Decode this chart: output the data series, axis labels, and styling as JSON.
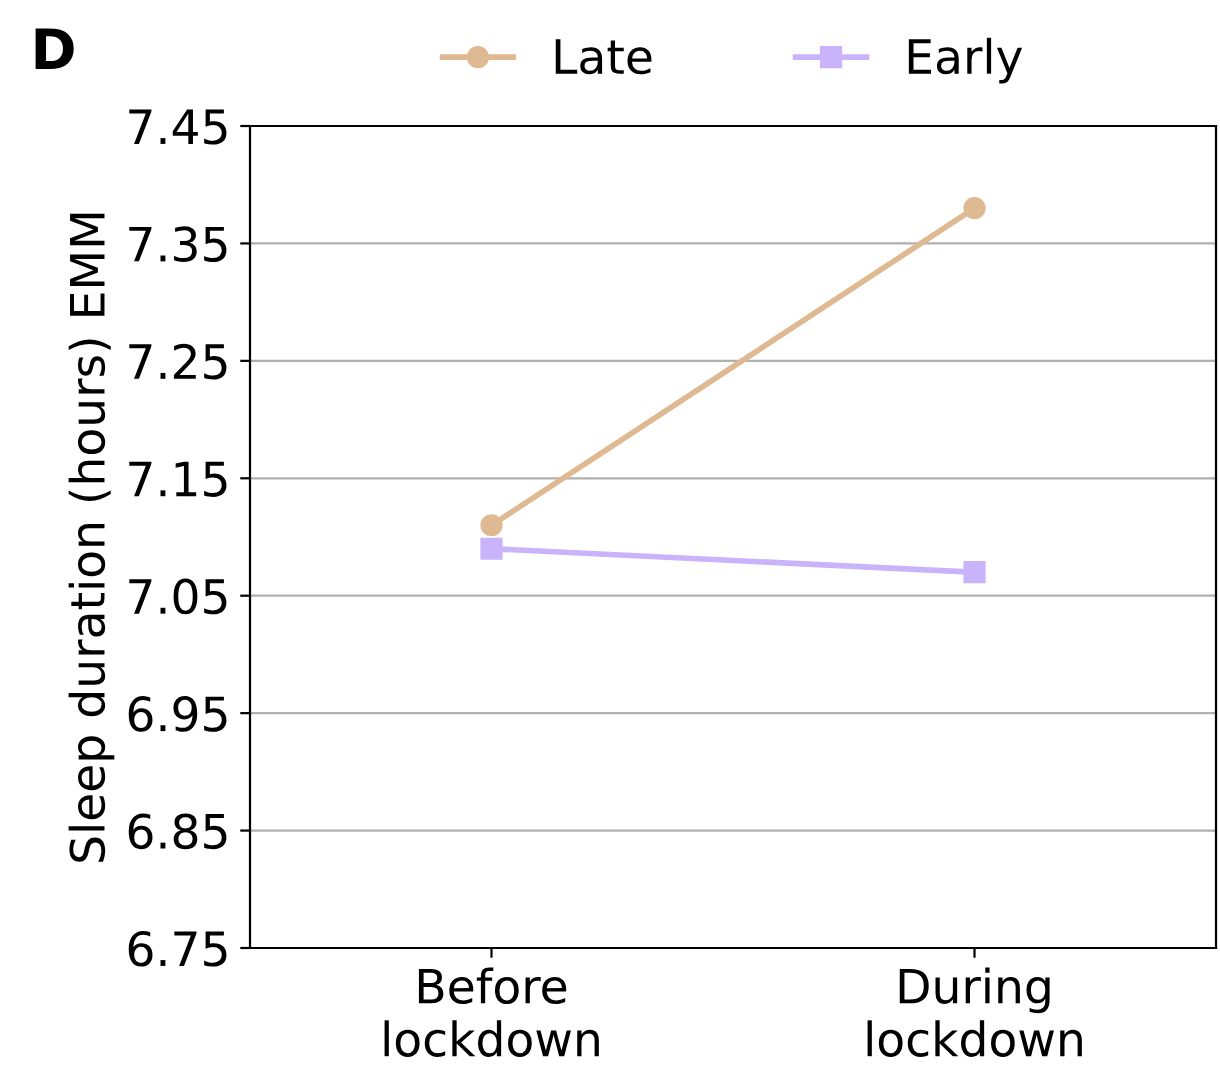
{
  "chart_data": {
    "type": "line",
    "ylabel": "Sleep duration (hours) EMM",
    "annotations": [
      "D"
    ],
    "categories": [
      "Before\nlockdown",
      "During\nlockdown"
    ],
    "series": [
      {
        "name": "Late",
        "color": "#deb992",
        "marker": "circle",
        "values": [
          7.11,
          7.38
        ]
      },
      {
        "name": "Early",
        "color": "#c9b3fb",
        "marker": "square",
        "values": [
          7.09,
          7.07
        ]
      }
    ],
    "ylim": [
      6.75,
      7.45
    ],
    "yticks": [
      6.75,
      6.85,
      6.95,
      7.05,
      7.15,
      7.25,
      7.35,
      7.45
    ],
    "grid": "y",
    "legend": "top",
    "line_style": "solid"
  }
}
